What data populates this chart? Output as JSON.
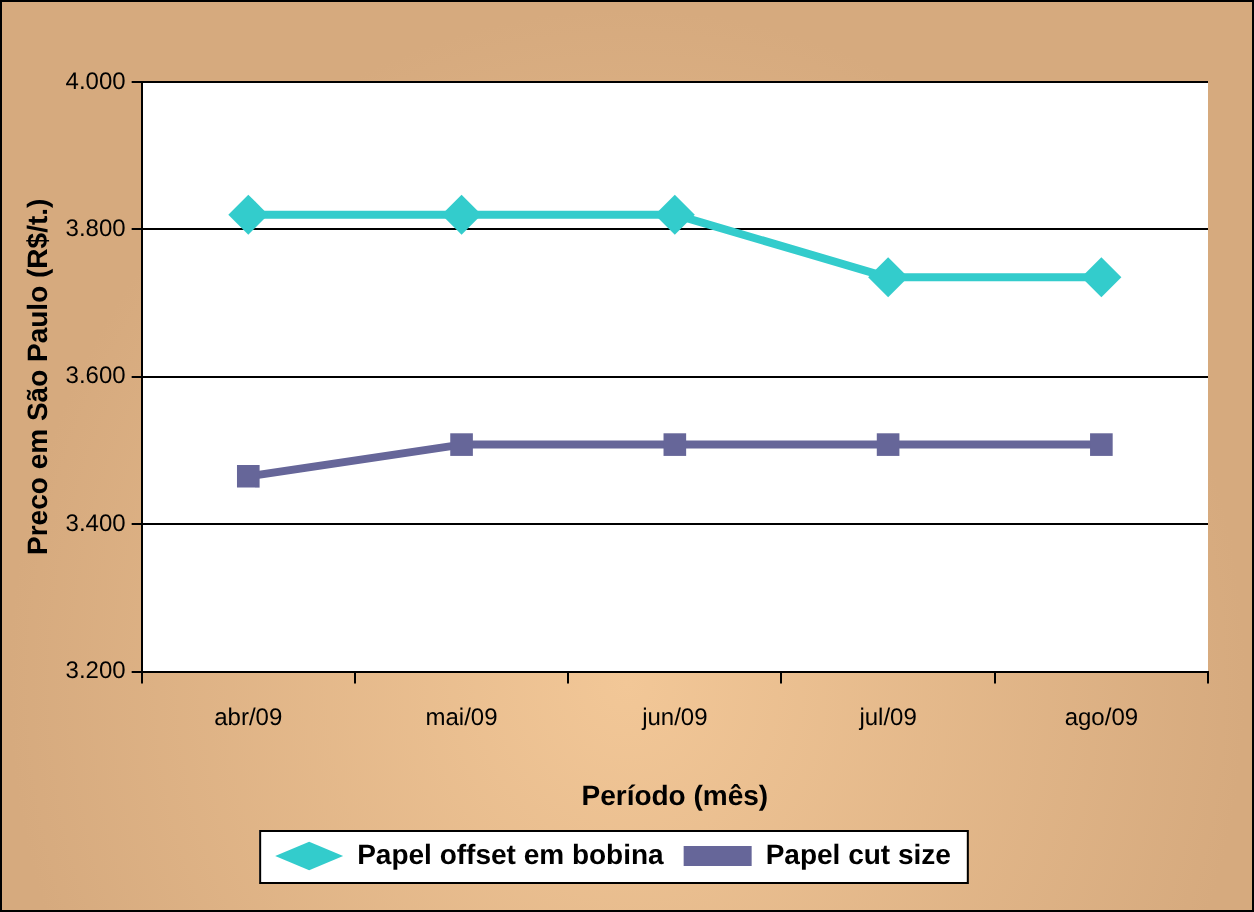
{
  "chart_data": {
    "type": "line",
    "xlabel": "Período (mês)",
    "ylabel": "Preco em São Paulo (R$/t.)",
    "categories": [
      "abr/09",
      "mai/09",
      "jun/09",
      "jul/09",
      "ago/09"
    ],
    "series": [
      {
        "name": "Papel offset em bobina",
        "color": "#33cccc",
        "values": [
          3820,
          3820,
          3820,
          3735,
          3735
        ],
        "marker": "diamond"
      },
      {
        "name": "Papel cut size",
        "color": "#666699",
        "values": [
          3465,
          3508,
          3508,
          3508,
          3508
        ],
        "marker": "square"
      }
    ],
    "ylim": [
      3200,
      4000
    ],
    "yticks": [
      {
        "value": 3200,
        "label": "3.200"
      },
      {
        "value": 3400,
        "label": "3.400"
      },
      {
        "value": 3600,
        "label": "3.600"
      },
      {
        "value": 3800,
        "label": "3.800"
      },
      {
        "value": 4000,
        "label": "4.000"
      }
    ],
    "grid": "y",
    "legend": "bottom",
    "line_style": "solid"
  }
}
